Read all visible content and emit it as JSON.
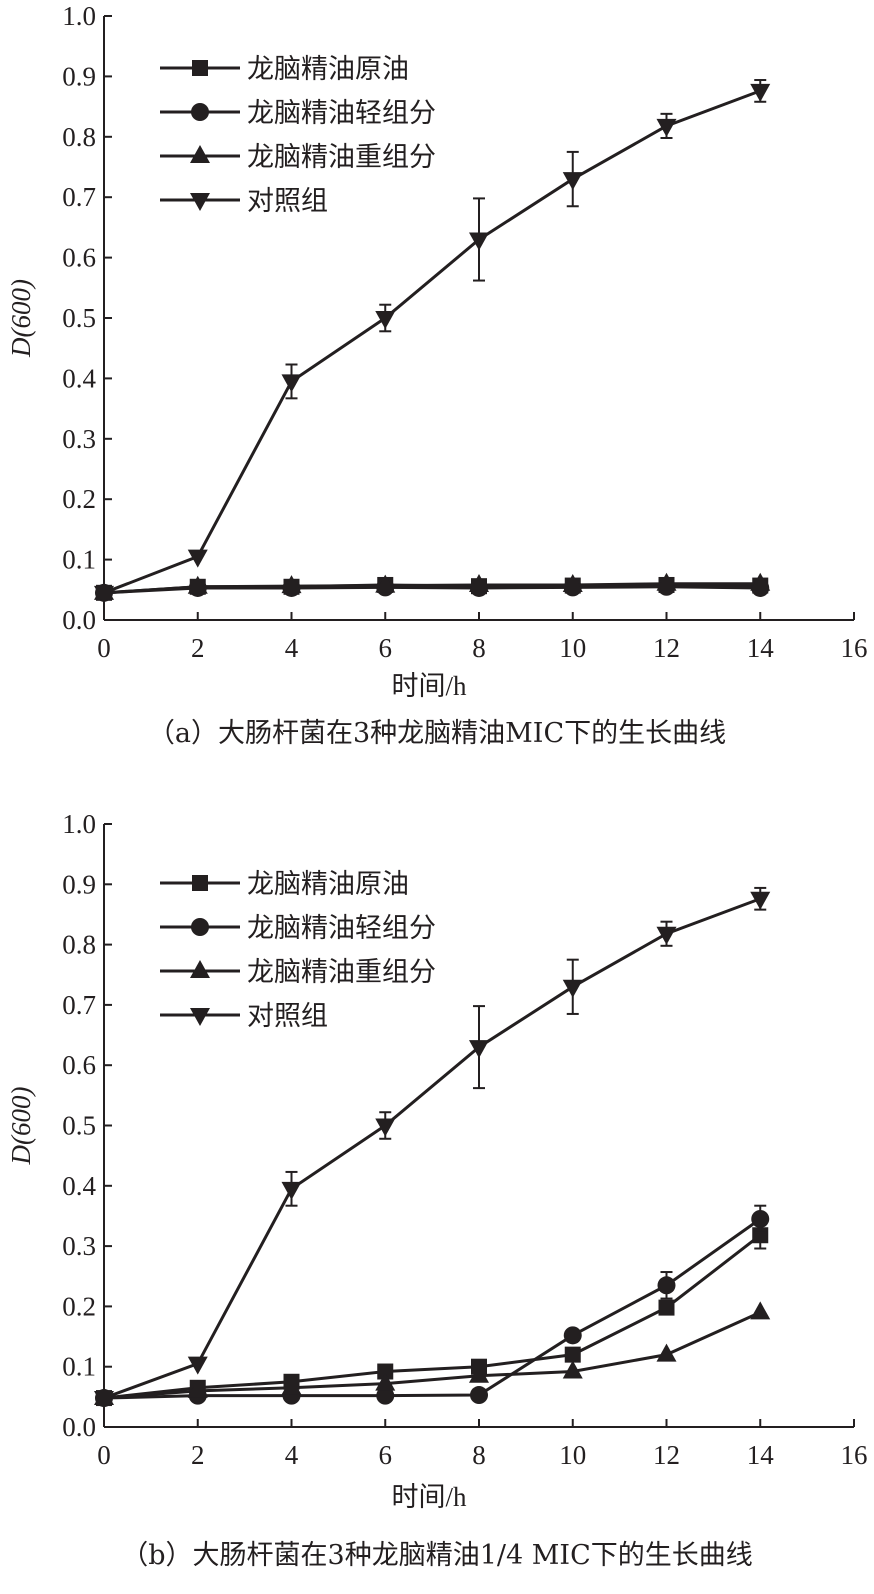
{
  "chart_data": [
    {
      "type": "line",
      "panel": "a",
      "title": "（a）大肠杆菌在3种龙脑精油MIC下的生长曲线",
      "xlabel": "时间/h",
      "ylabel": "D(600)",
      "xlim": [
        0,
        16
      ],
      "ylim": [
        0.0,
        1.0
      ],
      "xticks": [
        "0",
        "2",
        "4",
        "6",
        "8",
        "10",
        "12",
        "14",
        "16"
      ],
      "yticks": [
        "0.0",
        "0.1",
        "0.2",
        "0.3",
        "0.4",
        "0.5",
        "0.6",
        "0.7",
        "0.8",
        "0.9",
        "1.0"
      ],
      "grid": false,
      "legend_position": "top-left",
      "x": [
        0,
        2,
        4,
        6,
        8,
        10,
        12,
        14
      ],
      "series": [
        {
          "name": "龙脑精油原油",
          "marker": "square",
          "values": [
            0.045,
            0.055,
            0.055,
            0.058,
            0.056,
            0.057,
            0.058,
            0.057
          ],
          "errors": [
            0,
            0,
            0,
            0,
            0,
            0,
            0,
            0
          ]
        },
        {
          "name": "龙脑精油轻组分",
          "marker": "circle",
          "values": [
            0.045,
            0.053,
            0.053,
            0.054,
            0.053,
            0.054,
            0.055,
            0.053
          ],
          "errors": [
            0,
            0,
            0,
            0,
            0,
            0,
            0,
            0
          ]
        },
        {
          "name": "龙脑精油重组分",
          "marker": "triangle-up",
          "values": [
            0.045,
            0.055,
            0.056,
            0.057,
            0.058,
            0.058,
            0.06,
            0.06
          ],
          "errors": [
            0,
            0,
            0,
            0,
            0,
            0,
            0,
            0
          ]
        },
        {
          "name": "对照组",
          "marker": "triangle-down",
          "values": [
            0.045,
            0.105,
            0.395,
            0.5,
            0.63,
            0.73,
            0.818,
            0.876
          ],
          "errors": [
            0,
            0,
            0.028,
            0.022,
            0.068,
            0.045,
            0.02,
            0.018
          ]
        }
      ]
    },
    {
      "type": "line",
      "panel": "b",
      "title": "（b）大肠杆菌在3种龙脑精油1/4 MIC下的生长曲线",
      "xlabel": "时间/h",
      "ylabel": "D(600)",
      "xlim": [
        0,
        16
      ],
      "ylim": [
        0.0,
        1.0
      ],
      "xticks": [
        "0",
        "2",
        "4",
        "6",
        "8",
        "10",
        "12",
        "14",
        "16"
      ],
      "yticks": [
        "0.0",
        "0.1",
        "0.2",
        "0.3",
        "0.4",
        "0.5",
        "0.6",
        "0.7",
        "0.8",
        "0.9",
        "1.0"
      ],
      "grid": false,
      "legend_position": "top-left",
      "x": [
        0,
        2,
        4,
        6,
        8,
        10,
        12,
        14
      ],
      "series": [
        {
          "name": "龙脑精油原油",
          "marker": "square",
          "values": [
            0.048,
            0.065,
            0.075,
            0.092,
            0.1,
            0.12,
            0.198,
            0.318
          ],
          "errors": [
            0,
            0,
            0,
            0,
            0,
            0,
            0,
            0.022
          ]
        },
        {
          "name": "龙脑精油轻组分",
          "marker": "circle",
          "values": [
            0.048,
            0.052,
            0.052,
            0.052,
            0.053,
            0.152,
            0.235,
            0.345
          ],
          "errors": [
            0,
            0,
            0,
            0,
            0,
            0,
            0.022,
            0.022
          ]
        },
        {
          "name": "龙脑精油重组分",
          "marker": "triangle-up",
          "values": [
            0.048,
            0.06,
            0.065,
            0.072,
            0.085,
            0.092,
            0.12,
            0.19
          ],
          "errors": [
            0,
            0,
            0,
            0,
            0,
            0,
            0,
            0
          ]
        },
        {
          "name": "对照组",
          "marker": "triangle-down",
          "values": [
            0.048,
            0.105,
            0.395,
            0.5,
            0.63,
            0.73,
            0.818,
            0.876
          ],
          "errors": [
            0,
            0,
            0.028,
            0.022,
            0.068,
            0.045,
            0.02,
            0.018
          ]
        }
      ]
    }
  ]
}
